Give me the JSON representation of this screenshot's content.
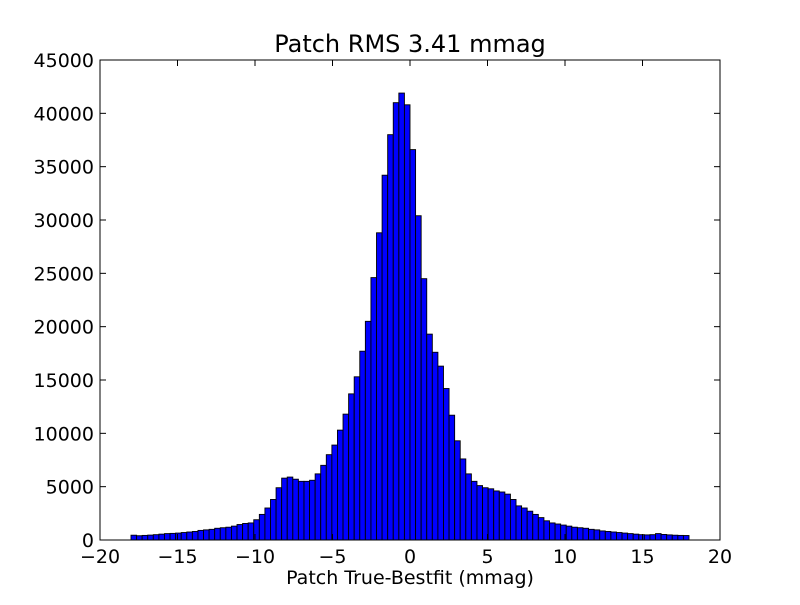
{
  "chart_data": {
    "type": "bar",
    "title": "Patch RMS 3.41 mmag",
    "xlabel": "Patch True-Bestfit (mmag)",
    "ylabel": "",
    "xlim": [
      -20,
      20
    ],
    "ylim": [
      0,
      45000
    ],
    "grid": false,
    "legend": "none",
    "bar_color": "#0000ff",
    "edge_color": "#000000",
    "xticks": [
      -20,
      -15,
      -10,
      -5,
      0,
      5,
      10,
      15,
      20
    ],
    "xtick_labels": [
      "−20",
      "−15",
      "−10",
      "−5",
      "0",
      "5",
      "10",
      "15",
      "20"
    ],
    "yticks": [
      0,
      5000,
      10000,
      15000,
      20000,
      25000,
      30000,
      35000,
      40000,
      45000
    ],
    "ytick_labels": [
      "0",
      "5000",
      "10000",
      "15000",
      "20000",
      "25000",
      "30000",
      "35000",
      "40000",
      "45000"
    ],
    "bin_edges": [
      -18.0,
      -17.64,
      -17.28,
      -16.92,
      -16.56,
      -16.2,
      -15.84,
      -15.48,
      -15.12,
      -14.76,
      -14.4,
      -14.04,
      -13.68,
      -13.32,
      -12.96,
      -12.6,
      -12.24,
      -11.88,
      -11.52,
      -11.16,
      -10.8,
      -10.44,
      -10.08,
      -9.72,
      -9.36,
      -9.0,
      -8.64,
      -8.28,
      -7.92,
      -7.56,
      -7.2,
      -6.84,
      -6.48,
      -6.12,
      -5.76,
      -5.4,
      -5.04,
      -4.68,
      -4.32,
      -3.96,
      -3.6,
      -3.24,
      -2.88,
      -2.52,
      -2.16,
      -1.8,
      -1.44,
      -1.08,
      -0.72,
      -0.36,
      0.0,
      0.36,
      0.72,
      1.08,
      1.44,
      1.8,
      2.16,
      2.52,
      2.88,
      3.24,
      3.6,
      3.96,
      4.32,
      4.68,
      5.04,
      5.4,
      5.76,
      6.12,
      6.48,
      6.84,
      7.2,
      7.56,
      7.92,
      8.28,
      8.64,
      9.0,
      9.36,
      9.72,
      10.08,
      10.44,
      10.8,
      11.16,
      11.52,
      11.88,
      12.24,
      12.6,
      12.96,
      13.32,
      13.68,
      14.04,
      14.4,
      14.76,
      15.12,
      15.48,
      15.84,
      16.2,
      16.56,
      16.92,
      17.28,
      17.64,
      18.0
    ],
    "values": [
      450,
      400,
      430,
      460,
      500,
      550,
      600,
      620,
      650,
      700,
      750,
      800,
      900,
      950,
      1000,
      1100,
      1150,
      1200,
      1300,
      1450,
      1550,
      1600,
      1900,
      2400,
      3000,
      3800,
      4900,
      5800,
      5900,
      5700,
      5500,
      5500,
      5600,
      6200,
      7000,
      8000,
      8900,
      10300,
      11800,
      13700,
      15300,
      17700,
      20500,
      24600,
      28800,
      34200,
      38000,
      41000,
      41900,
      40800,
      36600,
      30400,
      24500,
      19300,
      17600,
      16300,
      14200,
      11700,
      9300,
      7600,
      6200,
      5500,
      5100,
      4900,
      4800,
      4600,
      4500,
      4300,
      3800,
      3200,
      3000,
      2700,
      2400,
      2100,
      1800,
      1600,
      1500,
      1400,
      1300,
      1200,
      1150,
      1100,
      1000,
      950,
      850,
      800,
      750,
      700,
      650,
      600,
      550,
      500,
      480,
      500,
      600,
      520,
      480,
      450,
      430,
      420
    ]
  }
}
